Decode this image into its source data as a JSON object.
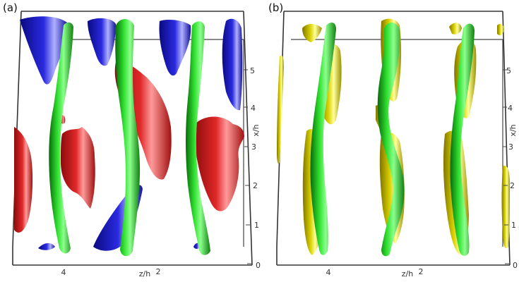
{
  "panels": [
    {
      "label": "(a)",
      "x_ticks": [
        "4",
        "2"
      ],
      "x_axis_label": "z/h",
      "y_ticks": [
        "0",
        "1",
        "2",
        "3",
        "4",
        "5"
      ],
      "y_axis_label": "x/h"
    },
    {
      "label": "(b)",
      "x_ticks": [
        "4",
        "2"
      ],
      "x_axis_label": "z/h",
      "y_ticks": [
        "0",
        "1",
        "2",
        "3",
        "4",
        "5"
      ],
      "y_axis_label": "x/h"
    }
  ],
  "colors": {
    "green_structures": "#22c422",
    "red_structures": "#d42020",
    "blue_structures": "#1a1ad0",
    "yellow_structures": "#d8d000",
    "frame": "#333333"
  }
}
